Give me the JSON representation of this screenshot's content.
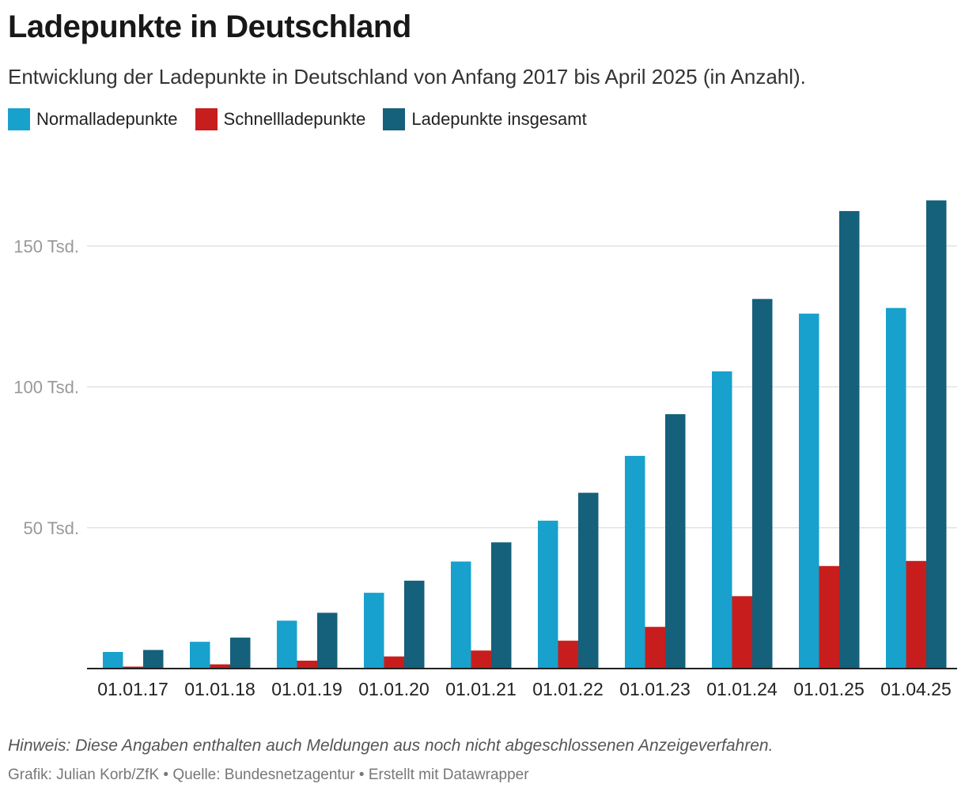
{
  "header": {
    "title": "Ladepunkte in Deutschland",
    "subtitle": "Entwicklung der Ladepunkte in Deutschland von Anfang 2017 bis April 2025 (in Anzahl)."
  },
  "colors": {
    "normal": "#18a1cd",
    "schnell": "#c71e1d",
    "gesamt": "#15607a",
    "grid": "#e2e2e2",
    "axis": "#222222",
    "tick": "#999999"
  },
  "legend": [
    {
      "label": "Normalladepunkte",
      "color": "#18a1cd"
    },
    {
      "label": "Schnellladepunkte",
      "color": "#c71e1d"
    },
    {
      "label": "Ladepunkte insgesamt",
      "color": "#15607a"
    }
  ],
  "chart_data": {
    "type": "bar",
    "title": "Ladepunkte in Deutschland",
    "subtitle": "Entwicklung der Ladepunkte in Deutschland von Anfang 2017 bis April 2025 (in Anzahl).",
    "xlabel": "",
    "ylabel": "",
    "ylim": [
      0,
      170000
    ],
    "yticks": [
      {
        "value": 50000,
        "label": "50 Tsd."
      },
      {
        "value": 100000,
        "label": "100 Tsd."
      },
      {
        "value": 150000,
        "label": "150 Tsd."
      }
    ],
    "grid": true,
    "legend_position": "top-left",
    "categories": [
      "01.01.17",
      "01.01.18",
      "01.01.19",
      "01.01.20",
      "01.01.21",
      "01.01.22",
      "01.01.23",
      "01.01.24",
      "01.01.25",
      "01.04.25"
    ],
    "series": [
      {
        "name": "Normalladepunkte",
        "values": [
          5900,
          9500,
          17000,
          26900,
          38000,
          52500,
          75500,
          105500,
          126000,
          128000
        ]
      },
      {
        "name": "Schnellladepunkte",
        "values": [
          700,
          1500,
          2800,
          4300,
          6400,
          9900,
          14800,
          25700,
          36400,
          38200
        ]
      },
      {
        "name": "Ladepunkte insgesamt",
        "values": [
          6600,
          11000,
          19800,
          31200,
          44800,
          62400,
          90300,
          131200,
          162400,
          166200
        ]
      }
    ]
  },
  "footer": {
    "note": "Hinweis: Diese Angaben enthalten auch Meldungen aus noch nicht abgeschlossenen Anzeigeverfahren.",
    "credits": "Grafik: Julian Korb/ZfK • Quelle: Bundesnetzagentur • Erstellt mit Datawrapper"
  }
}
